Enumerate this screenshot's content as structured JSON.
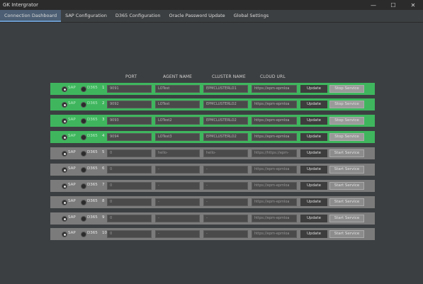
{
  "window": {
    "title": "GK Intergrator",
    "min_glyph": "—",
    "max_glyph": "☐",
    "close_glyph": "✕"
  },
  "tabs": [
    "Connection Dashboard",
    "SAP Configuration",
    "D365 Configuration",
    "Oracle Password Update",
    "Global Settings"
  ],
  "columns": {
    "port": "PORT",
    "agent_name": "AGENT NAME",
    "cluster_name": "CLUSTER NAME",
    "cloud_url": "CLOUD URL"
  },
  "colors": {
    "running": "#3fb65e",
    "stopped": "#7b7b7b"
  },
  "rows": [
    {
      "status": "running",
      "selected": "SAP",
      "sap": "SAP",
      "d365": "D365",
      "num": "1",
      "port": "9091",
      "agent": "LOTest",
      "cluster": "EPMCLUSTERLO1",
      "url": "https://epm-epmloa",
      "update": "Update",
      "service": "Stop Service"
    },
    {
      "status": "running",
      "selected": "SAP",
      "sap": "SAP",
      "d365": "D365",
      "num": "2",
      "port": "9092",
      "agent": "LOTest",
      "cluster": "EPMCLUSTERLO2",
      "url": "https://epm-epmloa",
      "update": "Update",
      "service": "Stop Service"
    },
    {
      "status": "running",
      "selected": "SAP",
      "sap": "SAP",
      "d365": "D365",
      "num": "3",
      "port": "9093",
      "agent": "LOTest2",
      "cluster": "EPMCLUSTERLO2",
      "url": "https://epm-epmloa",
      "update": "Update",
      "service": "Stop Service"
    },
    {
      "status": "running",
      "selected": "SAP",
      "sap": "SAP",
      "d365": "D365",
      "num": "4",
      "port": "9094",
      "agent": "LOTest3",
      "cluster": "EPMCLUSTERLO2",
      "url": "https://epm-epmloa",
      "update": "Update",
      "service": "Stop Service"
    },
    {
      "status": "stopped",
      "selected": "SAP",
      "sap": "SAP",
      "d365": "D365",
      "num": "5",
      "port": "0",
      "agent": "hello-",
      "cluster": "hello-",
      "url": "https://https://epm-",
      "update": "Update",
      "service": "Start Service"
    },
    {
      "status": "stopped",
      "selected": "SAP",
      "sap": "SAP",
      "d365": "D365",
      "num": "6",
      "port": "0",
      "agent": "-",
      "cluster": "-",
      "url": "https://epm-epmloa",
      "update": "Update",
      "service": "Start Service"
    },
    {
      "status": "stopped",
      "selected": "SAP",
      "sap": "SAP",
      "d365": "D365",
      "num": "7",
      "port": "0",
      "agent": "-",
      "cluster": "-",
      "url": "https://epm-epmloa",
      "update": "Update",
      "service": "Start Service"
    },
    {
      "status": "stopped",
      "selected": "SAP",
      "sap": "SAP",
      "d365": "D365",
      "num": "8",
      "port": "0",
      "agent": "-",
      "cluster": "-",
      "url": "https://epm-epmloa",
      "update": "Update",
      "service": "Start Service"
    },
    {
      "status": "stopped",
      "selected": "SAP",
      "sap": "SAP",
      "d365": "D365",
      "num": "9",
      "port": "0",
      "agent": "-",
      "cluster": "-",
      "url": "https://epm-epmloa",
      "update": "Update",
      "service": "Start Service"
    },
    {
      "status": "stopped",
      "selected": "SAP",
      "sap": "SAP",
      "d365": "D365",
      "num": "10",
      "port": "0",
      "agent": "-",
      "cluster": "-",
      "url": "https://epm-epmloa",
      "update": "Update",
      "service": "Start Service"
    }
  ]
}
